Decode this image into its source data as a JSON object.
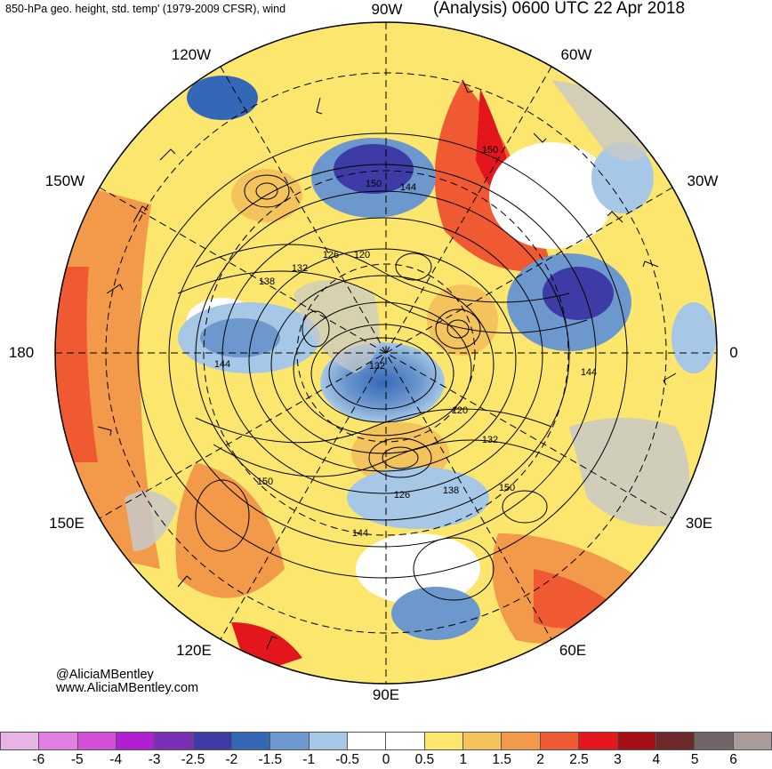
{
  "header": {
    "left_title": "850-hPa geo. height, std. temp' (1979-2009 CFSR), wind",
    "right_title": "(Analysis) 0600 UTC 22 Apr 2018"
  },
  "longitude_labels": {
    "w90": "90W",
    "w60": "60W",
    "w120": "120W",
    "w150": "150W",
    "w30": "30W",
    "lon180": "180",
    "lon0": "0",
    "e150": "150E",
    "e30": "30E",
    "e120": "120E",
    "e60": "60E",
    "e90": "90E"
  },
  "contour_labels": [
    "150",
    "144",
    "150",
    "126",
    "120",
    "132",
    "138",
    "144",
    "132",
    "144",
    "120",
    "132",
    "150",
    "150",
    "126",
    "138",
    "144"
  ],
  "credits": {
    "handle": "@AliciaMBentley",
    "website": "www.AliciaMBentley.com"
  },
  "colorbar": {
    "colors": [
      "#e8b4e6",
      "#e27fe3",
      "#d24fd8",
      "#b01fd0",
      "#7a2fb4",
      "#3d3ca6",
      "#3567b7",
      "#6d98ce",
      "#a6c8e6",
      "#ffffff",
      "#ffffff",
      "#fce66e",
      "#f5c35c",
      "#f2994a",
      "#f05a33",
      "#e2161b",
      "#a50f15",
      "#6e2a2a",
      "#716466",
      "#aa9a9a"
    ],
    "ticks": [
      "-6",
      "-5",
      "-4",
      "-3",
      "-2.5",
      "-2",
      "-1.5",
      "-1",
      "-0.5",
      "0",
      "0.5",
      "1",
      "1.5",
      "2",
      "2.5",
      "3",
      "4",
      "5",
      "6"
    ]
  },
  "colors": {
    "land": "#c8c8c8",
    "warm": "#f5c35c",
    "cold": "#3d3ca6",
    "contour": "#000000"
  }
}
